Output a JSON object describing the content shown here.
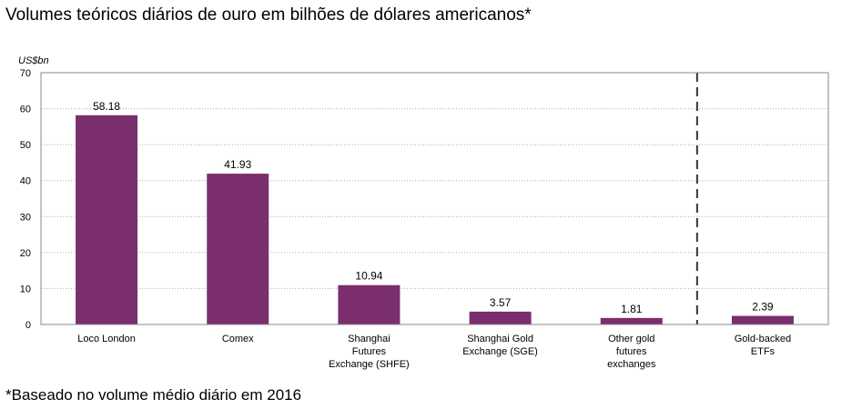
{
  "title": "Volumes teóricos diários de ouro em bilhões de dólares americanos*",
  "footnote": "*Baseado no volume médio diário em 2016",
  "chart_data": {
    "type": "bar",
    "unit_label": "US$bn",
    "categories": [
      [
        "Loco London"
      ],
      [
        "Comex"
      ],
      [
        "Shanghai",
        "Futures",
        "Exchange (SHFE)"
      ],
      [
        "Shanghai Gold",
        "Exchange (SGE)"
      ],
      [
        "Other gold",
        "futures",
        "exchanges"
      ],
      [
        "Gold-backed",
        "ETFs"
      ]
    ],
    "values": [
      58.18,
      41.93,
      10.94,
      3.57,
      1.81,
      2.39
    ],
    "value_labels": [
      "58.18",
      "41.93",
      "10.94",
      "3.57",
      "1.81",
      "2.39"
    ],
    "ylim": [
      0,
      70
    ],
    "yticks": [
      0,
      10,
      20,
      30,
      40,
      50,
      60,
      70
    ],
    "grid": true,
    "divider_after_category": 4,
    "bar_color": "#7b2e6e"
  }
}
